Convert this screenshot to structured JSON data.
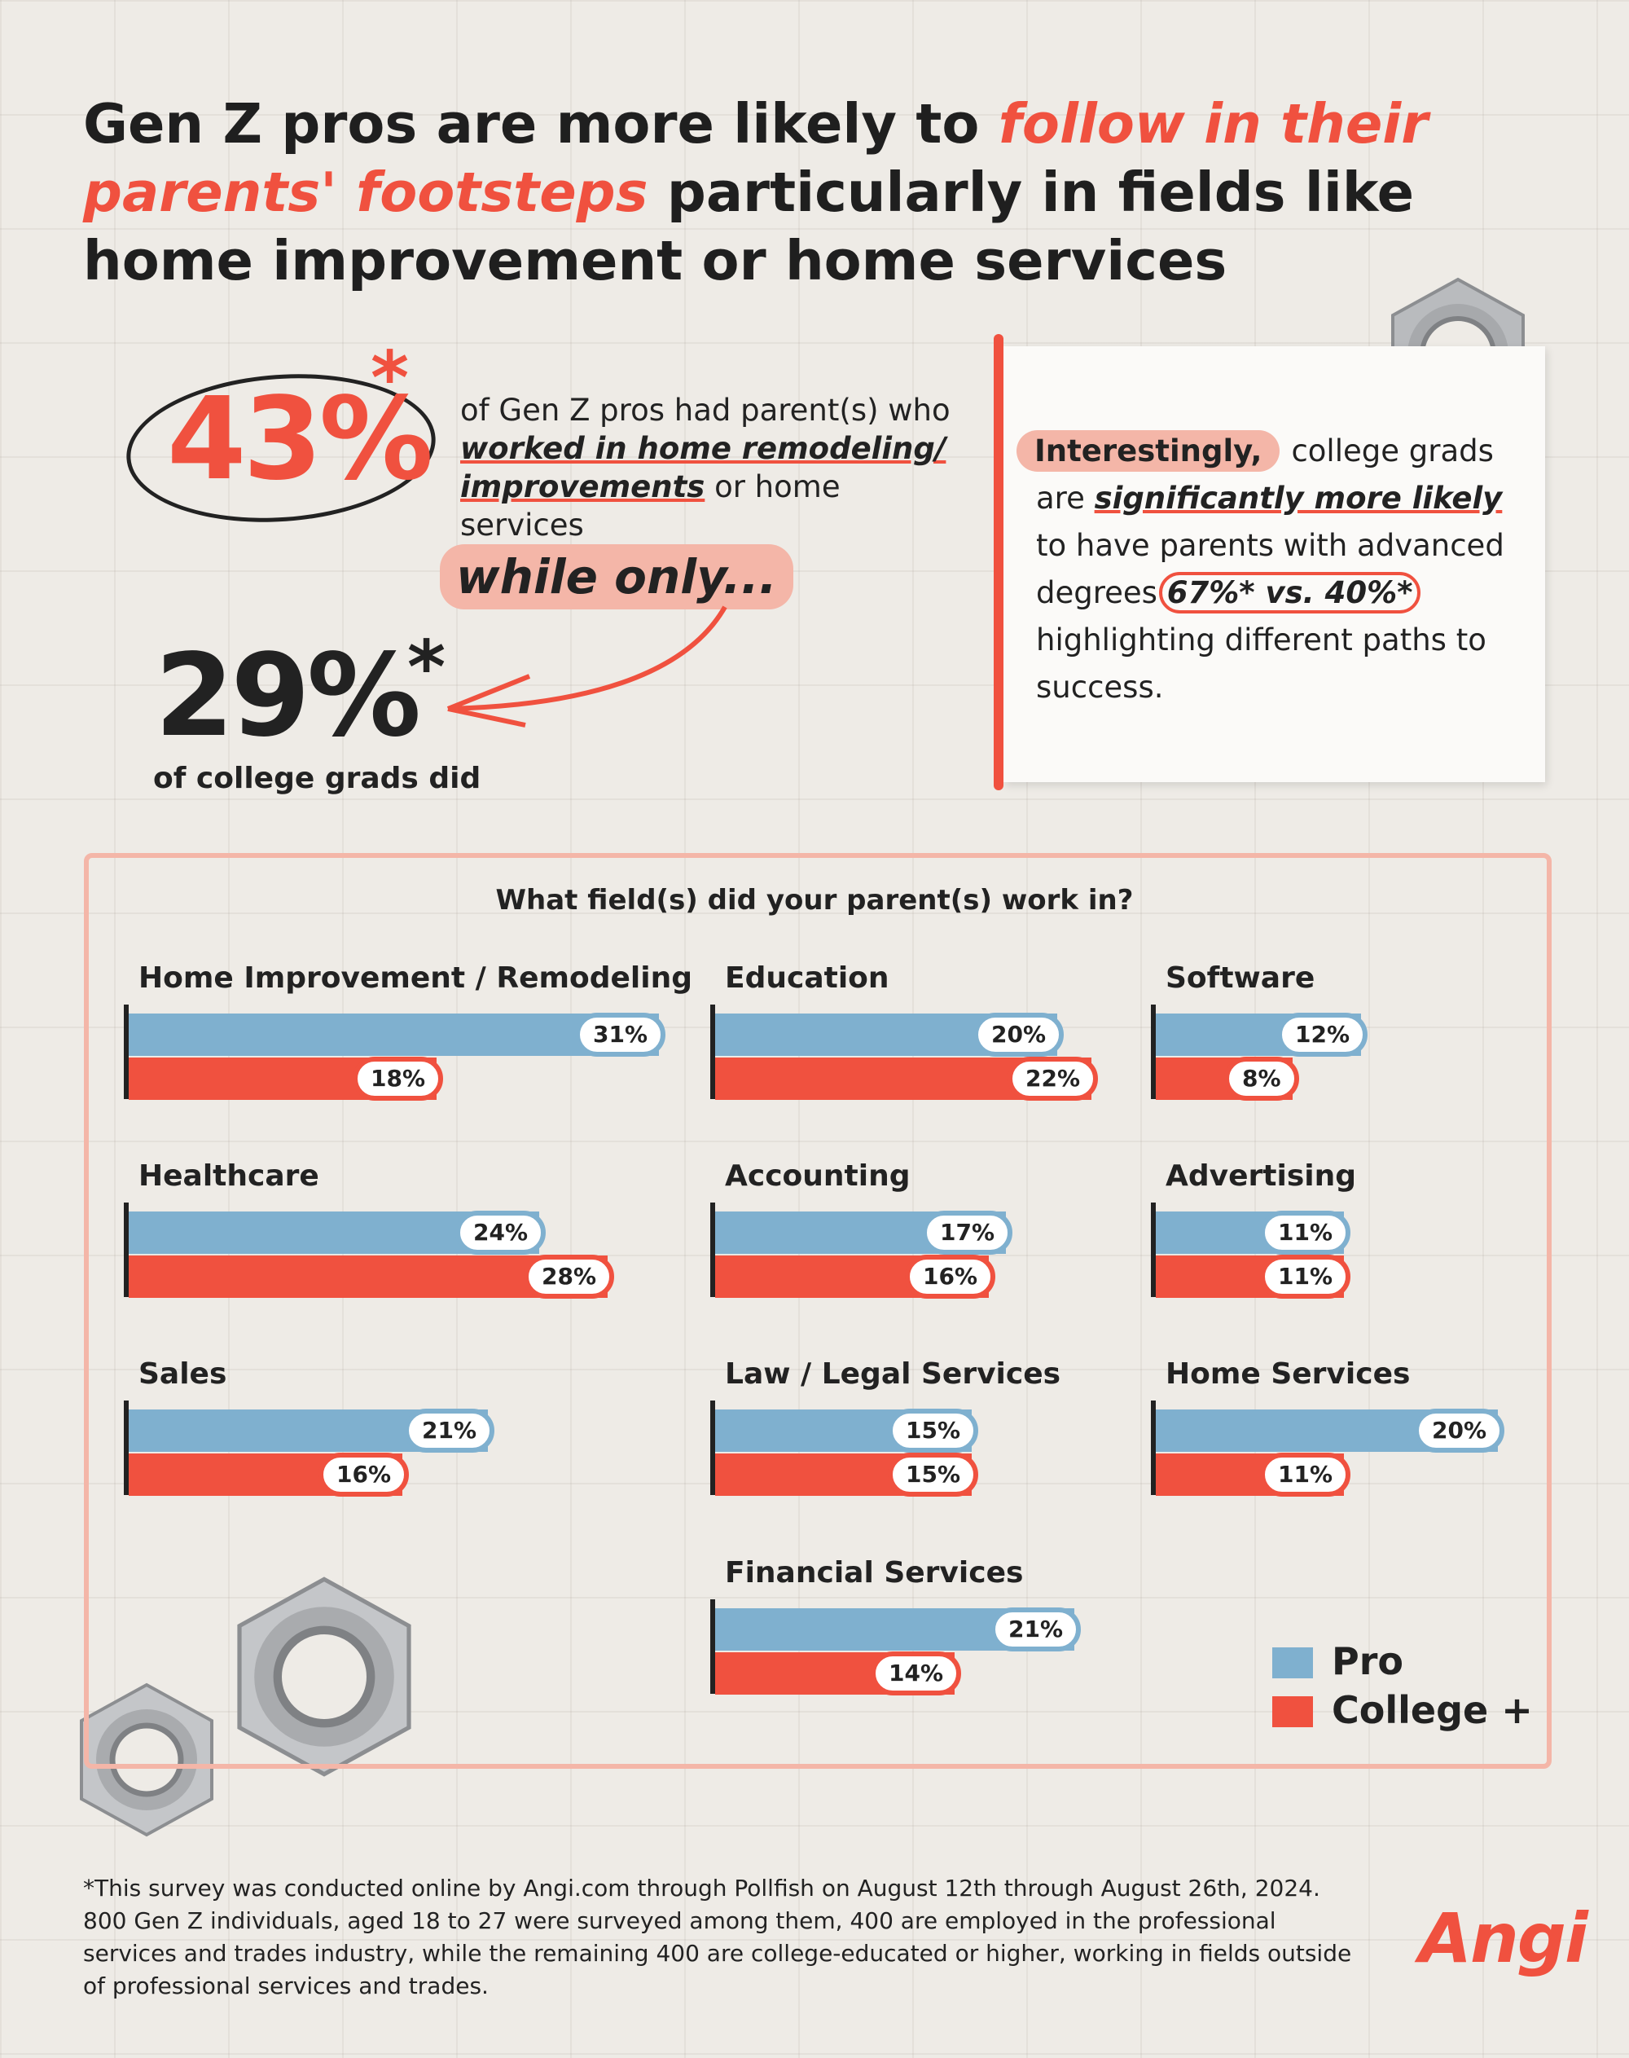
{
  "header": {
    "title_part1": "Gen Z pros are more likely to ",
    "title_highlight": "follow in their parents' footsteps",
    "title_part2": " particularly in fields like home improvement or home services"
  },
  "stats": {
    "pro_value": "43%",
    "pro_text_1": "of Gen Z pros had parent(s) who ",
    "pro_text_em1": "worked in home remodeling/ improvements",
    "pro_text_2": " or home services",
    "while_only": "while only...",
    "grad_value": "29%",
    "grad_text": "of college grads did",
    "asterisk": "*"
  },
  "note": {
    "pill": "Interestingly,",
    "text1": "college grads are ",
    "em": "significantly more likely",
    "text2": " to have parents with advanced degrees ",
    "circled": "67%* vs. 40%*",
    "text3": " highlighting different paths to success."
  },
  "chart_data": {
    "type": "bar",
    "title": "What field(s) did your parent(s) work in?",
    "categories": [
      "Home Improvement / Remodeling",
      "Education",
      "Software",
      "Healthcare",
      "Accounting",
      "Advertising",
      "Sales",
      "Law / Legal Services",
      "Home Services",
      "Financial Services"
    ],
    "series": [
      {
        "name": "Pro",
        "color": "#7fb0cf",
        "values": [
          31,
          20,
          12,
          24,
          17,
          11,
          21,
          15,
          20,
          21
        ]
      },
      {
        "name": "College +",
        "color": "#f0513f",
        "values": [
          18,
          22,
          8,
          28,
          16,
          11,
          16,
          15,
          11,
          14
        ]
      }
    ],
    "unit": "%",
    "legend": "bottom-right"
  },
  "footnote": "*This survey was conducted online by Angi.com through Pollfish on August 12th through August 26th, 2024. 800 Gen Z individuals, aged 18 to 27 were surveyed among them, 400 are employed in the professional services and trades industry, while the remaining 400 are college-educated or higher, working in fields outside of professional services and trades.",
  "logo": "Angi",
  "colors": {
    "accent": "#f0513f",
    "pro": "#7fb0cf",
    "pill": "#f4b6a8"
  }
}
